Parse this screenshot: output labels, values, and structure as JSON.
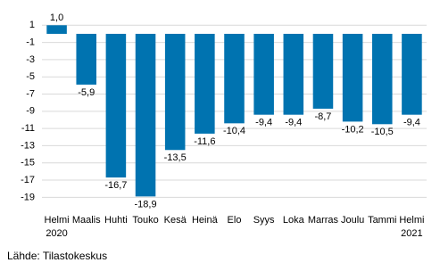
{
  "chart_data": {
    "type": "bar",
    "categories": [
      "Helmi\n2020",
      "Maalis",
      "Huhti",
      "Touko",
      "Kesä",
      "Heinä",
      "Elo",
      "Syys",
      "Loka",
      "Marras",
      "Joulu",
      "Tammi",
      "Helmi\n2021"
    ],
    "values": [
      1.0,
      -5.9,
      -16.7,
      -18.9,
      -13.5,
      -11.6,
      -10.4,
      -9.4,
      -9.4,
      -8.7,
      -10.2,
      -10.5,
      -9.4
    ],
    "value_labels": [
      "1,0",
      "-5,9",
      "-16,7",
      "-18,9",
      "-13,5",
      "-11,6",
      "-10,4",
      "-9,4",
      "-9,4",
      "-8,7",
      "-10,2",
      "-10,5",
      "-9,4"
    ],
    "color": "#0073b0",
    "ylim": [
      -20,
      3
    ],
    "yticks": [
      1,
      -1,
      -3,
      -5,
      -7,
      -9,
      -11,
      -13,
      -15,
      -17,
      -19
    ],
    "grid": true,
    "source": "Lähde: Tilastokeskus"
  }
}
